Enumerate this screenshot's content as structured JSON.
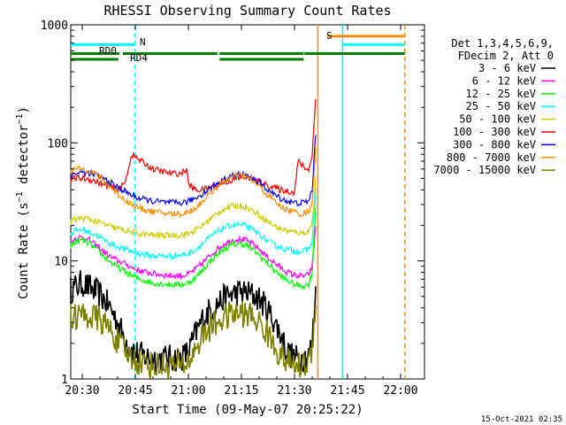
{
  "chart_data": {
    "type": "line",
    "title": "RHESSI Observing Summary Count Rates",
    "xlabel": "Start Time (09-May-07 20:25:22)",
    "ylabel": "Count Rate (s⁻¹ detector⁻¹)",
    "ylabel_main": "Count Rate (s",
    "ylabel_exp": "−1",
    "ylabel_mid": " detector",
    "ylabel_exp2": "−1",
    "ylabel_end": ")",
    "x_start_min": 26,
    "x_end_min": 96,
    "ylim": [
      1,
      1000
    ],
    "y_scale": "log",
    "x_ticks": [
      {
        "min": 30,
        "label": "20:30"
      },
      {
        "min": 45,
        "label": "20:45"
      },
      {
        "min": 60,
        "label": "21:00"
      },
      {
        "min": 75,
        "label": "21:15"
      },
      {
        "min": 90,
        "label": "21:30"
      },
      {
        "min": 105,
        "label": "21:45"
      },
      {
        "min": 120,
        "label": "22:00"
      }
    ],
    "y_ticks": [
      {
        "value": 1,
        "label": "1"
      },
      {
        "value": 10,
        "label": "10"
      },
      {
        "value": 100,
        "label": "100"
      },
      {
        "value": 1000,
        "label": "1000"
      }
    ],
    "legend_header": [
      "Det 1,3,4,5,6,9,",
      "FDecim 2, Att 0"
    ],
    "legend_position": "right",
    "series": [
      {
        "name": "3 - 6 keV",
        "color": "#000000",
        "x": [
          26,
          30,
          35,
          38,
          40,
          42,
          44,
          46,
          50,
          55,
          58,
          60,
          62,
          64,
          66,
          68,
          70,
          72,
          75,
          78,
          80,
          82,
          84,
          86,
          88,
          90,
          92,
          94,
          95,
          96
        ],
        "y": [
          5.5,
          6.5,
          5.2,
          4.0,
          3.0,
          2.2,
          1.8,
          1.6,
          1.5,
          1.5,
          1.5,
          1.7,
          2.4,
          3.2,
          3.8,
          4.3,
          4.8,
          5.2,
          5.5,
          5.2,
          4.8,
          4.0,
          3.2,
          2.4,
          1.7,
          1.5,
          1.5,
          1.6,
          2.0,
          6.0
        ]
      },
      {
        "name": "6 - 12 keV",
        "color": "#ff00ff",
        "x": [
          26,
          28,
          30,
          32,
          34,
          36,
          38,
          40,
          42,
          44,
          46,
          50,
          55,
          58,
          60,
          62,
          64,
          66,
          68,
          70,
          72,
          74,
          76,
          78,
          80,
          82,
          84,
          86,
          88,
          90,
          92,
          94,
          95,
          96
        ],
        "y": [
          13.5,
          15.5,
          15.8,
          15.0,
          13.5,
          12.0,
          10.8,
          10.0,
          9.5,
          8.8,
          8.3,
          7.8,
          7.5,
          7.5,
          7.7,
          8.5,
          9.6,
          11.0,
          12.5,
          13.8,
          14.8,
          15.3,
          15.0,
          14.0,
          12.6,
          11.0,
          9.8,
          8.8,
          8.0,
          7.6,
          7.4,
          7.6,
          9.0,
          20.0
        ]
      },
      {
        "name": "12 - 25 keV",
        "color": "#00ff00",
        "x": [
          26,
          28,
          30,
          32,
          34,
          36,
          38,
          40,
          42,
          44,
          46,
          50,
          55,
          58,
          60,
          62,
          64,
          66,
          68,
          70,
          72,
          74,
          76,
          78,
          80,
          82,
          84,
          86,
          88,
          90,
          92,
          94,
          95,
          96
        ],
        "y": [
          13.0,
          14.5,
          15.0,
          14.0,
          12.5,
          11.0,
          9.8,
          8.8,
          8.2,
          7.5,
          7.0,
          6.5,
          6.3,
          6.3,
          6.5,
          7.2,
          8.3,
          9.8,
          11.2,
          12.6,
          13.5,
          14.0,
          13.8,
          12.6,
          11.2,
          9.8,
          8.5,
          7.5,
          6.8,
          6.3,
          6.1,
          6.3,
          8.0,
          30.0
        ]
      },
      {
        "name": "25 - 50 keV",
        "color": "#00ffff",
        "x": [
          26,
          28,
          30,
          32,
          34,
          36,
          38,
          40,
          42,
          44,
          46,
          50,
          55,
          58,
          60,
          62,
          64,
          66,
          68,
          70,
          72,
          74,
          76,
          78,
          80,
          82,
          84,
          86,
          88,
          90,
          92,
          94,
          95,
          96
        ],
        "y": [
          16.5,
          18.0,
          18.5,
          17.5,
          16.5,
          15.2,
          14.0,
          13.2,
          12.6,
          12.0,
          11.5,
          11.0,
          11.0,
          11.2,
          11.5,
          12.5,
          14.0,
          15.8,
          17.5,
          19.0,
          20.0,
          20.3,
          19.8,
          18.5,
          16.8,
          15.0,
          13.8,
          13.0,
          12.5,
          12.2,
          12.0,
          12.5,
          15.0,
          40.0
        ]
      },
      {
        "name": "50 - 100 keV",
        "color": "#cccc00",
        "x": [
          26,
          28,
          30,
          32,
          34,
          36,
          38,
          40,
          42,
          44,
          46,
          50,
          55,
          58,
          60,
          62,
          64,
          66,
          68,
          70,
          72,
          74,
          76,
          78,
          80,
          82,
          84,
          86,
          88,
          90,
          92,
          94,
          95,
          96
        ],
        "y": [
          21.0,
          22.5,
          23.0,
          22.5,
          21.5,
          20.5,
          19.5,
          18.8,
          18.2,
          17.5,
          17.0,
          16.5,
          16.5,
          16.6,
          17.0,
          18.2,
          20.0,
          22.5,
          25.0,
          27.5,
          29.0,
          29.5,
          28.8,
          27.0,
          24.5,
          22.0,
          20.0,
          18.8,
          18.0,
          17.5,
          17.2,
          17.8,
          21.0,
          50.0
        ]
      },
      {
        "name": "100 - 300 keV",
        "color": "#ff0000",
        "x": [
          26,
          28,
          30,
          32,
          34,
          36,
          38,
          40,
          42,
          44,
          46,
          50,
          55,
          58,
          59.5,
          60,
          62,
          64,
          66,
          68,
          70,
          72,
          74,
          76,
          78,
          80,
          82,
          84,
          86,
          88,
          90,
          91,
          92,
          94,
          95,
          96
        ],
        "y": [
          48,
          50,
          50,
          49,
          47,
          44,
          42,
          40,
          45,
          80,
          72,
          60,
          55,
          55,
          60,
          45,
          40,
          40,
          42,
          44,
          46,
          48,
          50,
          51,
          50,
          47,
          44,
          42,
          40,
          39,
          38,
          70,
          65,
          58,
          80,
          240
        ]
      },
      {
        "name": "300 - 800 keV",
        "color": "#0000ff",
        "x": [
          26,
          28,
          30,
          32,
          34,
          36,
          38,
          40,
          42,
          44,
          46,
          50,
          55,
          58,
          60,
          62,
          64,
          66,
          68,
          70,
          72,
          74,
          76,
          78,
          80,
          82,
          84,
          86,
          88,
          90,
          92,
          94,
          95,
          96
        ],
        "y": [
          52,
          55,
          56,
          55,
          53,
          50,
          46,
          42,
          39,
          36,
          34,
          32,
          31,
          31,
          32,
          34,
          37,
          41,
          45,
          49,
          52,
          54,
          53,
          50,
          46,
          41,
          37,
          34,
          32,
          31,
          31,
          32,
          40,
          120
        ]
      },
      {
        "name": "800 - 7000 keV",
        "color": "#ff8c00",
        "x": [
          26,
          28,
          30,
          32,
          34,
          36,
          38,
          40,
          42,
          44,
          46,
          50,
          55,
          58,
          60,
          62,
          64,
          66,
          68,
          70,
          72,
          74,
          76,
          78,
          80,
          82,
          84,
          86,
          88,
          90,
          92,
          94,
          95,
          96
        ],
        "y": [
          58,
          60,
          60,
          58,
          54,
          48,
          42,
          37,
          33,
          30,
          28,
          26,
          25,
          25,
          26,
          28,
          32,
          37,
          42,
          47,
          51,
          53,
          52,
          48,
          43,
          37,
          33,
          29,
          27,
          26,
          25,
          26,
          32,
          90
        ]
      },
      {
        "name": "7000 - 15000 keV",
        "color": "#808000",
        "x": [
          26,
          30,
          35,
          38,
          40,
          42,
          44,
          46,
          50,
          55,
          58,
          60,
          62,
          64,
          66,
          68,
          70,
          72,
          75,
          78,
          80,
          82,
          84,
          86,
          88,
          90,
          92,
          94,
          95,
          96
        ],
        "y": [
          3.3,
          3.5,
          3.2,
          2.6,
          2.1,
          1.7,
          1.5,
          1.4,
          1.3,
          1.3,
          1.3,
          1.4,
          1.8,
          2.3,
          2.7,
          3.0,
          3.3,
          3.5,
          3.6,
          3.4,
          3.0,
          2.5,
          2.0,
          1.6,
          1.4,
          1.3,
          1.3,
          1.4,
          1.8,
          5.0
        ]
      }
    ],
    "vertical_lines": [
      {
        "min": 26.1,
        "color": "#00ffff",
        "style": "solid"
      },
      {
        "min": 44.9,
        "color": "#00ffff",
        "style": "dashed"
      },
      {
        "min": 96.6,
        "color": "#ff8c00",
        "style": "solid"
      },
      {
        "min": 103.6,
        "color": "#00ffff",
        "style": "solid"
      },
      {
        "min": 121.2,
        "color": "#ff8c00",
        "style": "dashed"
      }
    ],
    "flag_bars": [
      {
        "label": "RD0",
        "color": "#00ffff",
        "y_value": 680,
        "segments": [
          [
            26,
            44.9
          ]
        ]
      },
      {
        "label": "N",
        "color": "#00ffff",
        "y_value": 0,
        "segments": []
      },
      {
        "label": "RD4",
        "color": "#008000",
        "y_value": 570,
        "segments": [
          [
            26,
            40.5
          ],
          [
            41.5,
            68.2
          ],
          [
            68.8,
            92.6
          ],
          [
            92.8,
            121.2
          ]
        ]
      },
      {
        "label": "S",
        "color": "#ff8c00",
        "y_value": 800,
        "segments": [
          [
            99.2,
            121.2
          ]
        ]
      },
      {
        "label": "",
        "color": "#008000",
        "y_value": 510,
        "segments": [
          [
            26,
            40.2
          ],
          [
            68.8,
            92.6
          ]
        ]
      },
      {
        "label": "",
        "color": "#00ffff",
        "y_value": 680,
        "segments": [
          [
            103.6,
            121.2
          ]
        ]
      }
    ],
    "timestamp": "15-Oct-2021 02:35"
  }
}
